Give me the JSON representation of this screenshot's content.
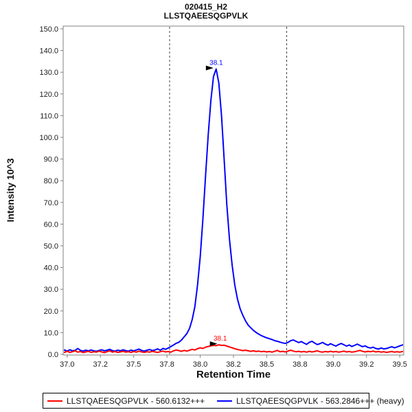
{
  "header": {
    "line1": "020415_H2",
    "line2": "LLSTQAEESQGPVLK"
  },
  "colors": {
    "frame": "#808080",
    "tick_text": "#1a1a1a",
    "boundary": "#404040",
    "light_series": "#ff0000",
    "heavy_series": "#0000ff",
    "annotation_arrow": "#000000"
  },
  "chart_data": {
    "type": "line",
    "title": "020415_H2 LLSTQAEESQGPVLK",
    "xlabel": "Retention Time",
    "ylabel": "Intensity 10^3",
    "xlim": [
      36.97,
      39.53
    ],
    "ylim": [
      0,
      150
    ],
    "grid": false,
    "legend_position": "bottom",
    "x_ticks": [
      {
        "value": 37.0,
        "label": "37.0"
      },
      {
        "value": 37.25,
        "label": "37.2"
      },
      {
        "value": 37.5,
        "label": "37.5"
      },
      {
        "value": 37.75,
        "label": "37.8"
      },
      {
        "value": 38.0,
        "label": "38.0"
      },
      {
        "value": 38.25,
        "label": "38.2"
      },
      {
        "value": 38.5,
        "label": "38.5"
      },
      {
        "value": 38.75,
        "label": "38.8"
      },
      {
        "value": 39.0,
        "label": "39.0"
      },
      {
        "value": 39.25,
        "label": "39.2"
      },
      {
        "value": 39.5,
        "label": "39.5"
      }
    ],
    "y_ticks": [
      {
        "value": 0,
        "label": "0.0"
      },
      {
        "value": 10,
        "label": "10.0"
      },
      {
        "value": 20,
        "label": "20.0"
      },
      {
        "value": 30,
        "label": "30.0"
      },
      {
        "value": 40,
        "label": "40.0"
      },
      {
        "value": 50,
        "label": "50.0"
      },
      {
        "value": 60,
        "label": "60.0"
      },
      {
        "value": 70,
        "label": "70.0"
      },
      {
        "value": 80,
        "label": "80.0"
      },
      {
        "value": 90,
        "label": "90.0"
      },
      {
        "value": 100,
        "label": "100.0"
      },
      {
        "value": 110,
        "label": "110.0"
      },
      {
        "value": 120,
        "label": "120.0"
      },
      {
        "value": 130,
        "label": "130.0"
      },
      {
        "value": 140,
        "label": "140.0"
      },
      {
        "value": 150,
        "label": "150.0"
      }
    ],
    "peak_boundaries": [
      37.77,
      38.65
    ],
    "annotations": [
      {
        "x": 38.11,
        "y": 131.5,
        "label": "38.1",
        "color": "#0000ff"
      },
      {
        "x": 38.14,
        "y": 4.4,
        "label": "38.1",
        "color": "#ff0000"
      }
    ],
    "x": [
      36.96,
      36.98,
      37.0,
      37.02,
      37.04,
      37.06,
      37.08,
      37.1,
      37.12,
      37.14,
      37.16,
      37.18,
      37.2,
      37.22,
      37.24,
      37.26,
      37.28,
      37.3,
      37.32,
      37.34,
      37.36,
      37.38,
      37.4,
      37.42,
      37.44,
      37.46,
      37.48,
      37.5,
      37.52,
      37.54,
      37.56,
      37.58,
      37.6,
      37.62,
      37.64,
      37.66,
      37.68,
      37.7,
      37.72,
      37.74,
      37.76,
      37.78,
      37.8,
      37.82,
      37.84,
      37.86,
      37.88,
      37.9,
      37.92,
      37.94,
      37.96,
      37.98,
      38.0,
      38.02,
      38.04,
      38.06,
      38.08,
      38.1,
      38.12,
      38.14,
      38.16,
      38.18,
      38.2,
      38.22,
      38.24,
      38.26,
      38.28,
      38.3,
      38.32,
      38.34,
      38.36,
      38.38,
      38.4,
      38.42,
      38.44,
      38.46,
      38.48,
      38.5,
      38.52,
      38.54,
      38.56,
      38.58,
      38.6,
      38.62,
      38.64,
      38.66,
      38.68,
      38.7,
      38.72,
      38.74,
      38.76,
      38.78,
      38.8,
      38.82,
      38.84,
      38.86,
      38.88,
      38.9,
      38.92,
      38.94,
      38.96,
      38.98,
      39.0,
      39.02,
      39.04,
      39.06,
      39.08,
      39.1,
      39.12,
      39.14,
      39.16,
      39.18,
      39.2,
      39.22,
      39.24,
      39.26,
      39.28,
      39.3,
      39.32,
      39.34,
      39.36,
      39.38,
      39.4,
      39.42,
      39.44,
      39.46,
      39.48,
      39.5,
      39.52,
      39.54
    ],
    "series": [
      {
        "key": "heavy",
        "name": "LLSTQAEESQGPVLK - 563.2846+++ (heavy)",
        "color": "#0000ff",
        "values": [
          1.6,
          2.0,
          1.5,
          2.1,
          1.6,
          1.8,
          2.7,
          1.8,
          1.5,
          1.9,
          1.6,
          2.0,
          1.6,
          1.4,
          1.8,
          2.1,
          1.6,
          1.9,
          2.3,
          1.7,
          1.5,
          1.9,
          1.6,
          2.1,
          1.7,
          1.5,
          1.9,
          1.6,
          2.0,
          2.4,
          1.8,
          1.5,
          1.9,
          2.2,
          1.7,
          2.0,
          2.5,
          1.9,
          2.7,
          2.3,
          2.9,
          3.6,
          4.3,
          5.1,
          5.6,
          6.6,
          8.1,
          9.6,
          12.0,
          16.0,
          22.0,
          32.0,
          45.0,
          62.0,
          82.0,
          101.0,
          117.0,
          128.0,
          131.5,
          125.0,
          110.0,
          90.0,
          69.0,
          53.0,
          41.0,
          32.0,
          25.5,
          21.0,
          18.0,
          15.5,
          13.5,
          12.2,
          11.0,
          10.1,
          9.3,
          8.6,
          8.1,
          7.6,
          7.2,
          6.8,
          6.3,
          6.0,
          5.6,
          5.3,
          5.0,
          5.5,
          6.3,
          6.6,
          6.0,
          5.4,
          5.9,
          5.2,
          4.6,
          5.5,
          6.0,
          5.2,
          4.5,
          4.9,
          5.5,
          4.7,
          4.2,
          4.9,
          4.3,
          3.8,
          4.5,
          5.0,
          4.4,
          3.8,
          4.3,
          3.6,
          4.1,
          4.7,
          4.1,
          3.5,
          3.9,
          3.2,
          2.9,
          3.3,
          2.7,
          2.4,
          2.9,
          2.5,
          2.7,
          3.1,
          3.5,
          3.0,
          3.4,
          3.9,
          4.3,
          4.6
        ]
      },
      {
        "key": "light",
        "name": "LLSTQAEESQGPVLK - 560.6132+++",
        "color": "#ff0000",
        "values": [
          1.1,
          0.9,
          1.4,
          0.9,
          1.2,
          1.6,
          1.0,
          1.3,
          0.8,
          1.1,
          1.4,
          0.9,
          1.2,
          1.0,
          1.5,
          1.1,
          0.8,
          1.2,
          1.6,
          1.0,
          1.3,
          0.9,
          1.1,
          1.4,
          1.0,
          1.2,
          0.9,
          1.3,
          1.0,
          1.5,
          1.1,
          0.9,
          1.2,
          1.0,
          1.4,
          1.1,
          0.9,
          1.2,
          1.5,
          1.1,
          1.3,
          1.0,
          1.6,
          2.0,
          1.7,
          1.4,
          1.8,
          1.5,
          1.9,
          2.3,
          2.0,
          2.6,
          3.0,
          2.7,
          3.3,
          3.6,
          3.9,
          4.1,
          4.0,
          4.4,
          4.1,
          4.2,
          3.8,
          3.4,
          3.0,
          2.6,
          2.2,
          2.0,
          1.7,
          1.9,
          1.6,
          1.4,
          1.6,
          1.3,
          1.5,
          1.2,
          1.4,
          1.1,
          1.3,
          1.0,
          1.4,
          1.8,
          1.2,
          1.4,
          1.1,
          1.5,
          1.9,
          1.5,
          1.2,
          1.4,
          1.1,
          1.3,
          1.0,
          1.4,
          1.1,
          1.3,
          1.6,
          1.2,
          1.0,
          1.3,
          1.1,
          1.4,
          1.1,
          1.3,
          1.0,
          1.2,
          1.5,
          1.1,
          1.3,
          1.0,
          1.2,
          1.5,
          1.8,
          1.4,
          1.1,
          1.4,
          1.2,
          1.5,
          1.1,
          1.3,
          1.0,
          1.2,
          0.9,
          1.1,
          1.3,
          1.0,
          1.2,
          1.0,
          1.3,
          1.1
        ]
      }
    ]
  },
  "legend": {
    "items": [
      {
        "label": "LLSTQAEESQGPVLK - 560.6132+++"
      },
      {
        "label": "LLSTQAEESQGPVLK - 563.2846+++ (heavy)"
      }
    ]
  }
}
